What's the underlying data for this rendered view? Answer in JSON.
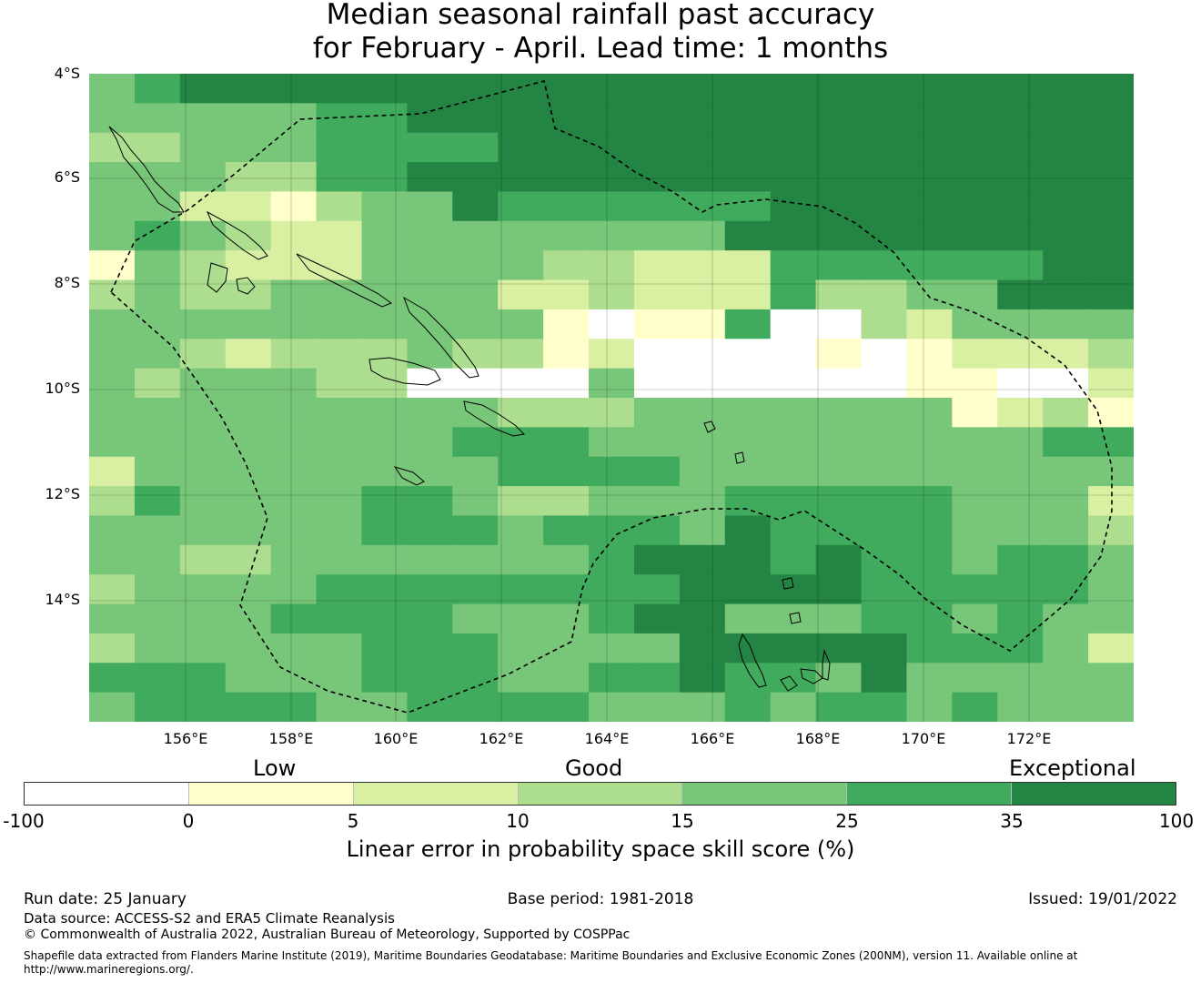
{
  "title": {
    "line1": "Median seasonal rainfall past accuracy",
    "line2": "for February - April. Lead time: 1 months"
  },
  "map": {
    "latitude_labels": [
      "4°S",
      "6°S",
      "8°S",
      "10°S",
      "12°S",
      "14°S"
    ],
    "longitude_labels": [
      "156°E",
      "158°E",
      "160°E",
      "162°E",
      "164°E",
      "166°E",
      "168°E",
      "170°E",
      "172°E"
    ],
    "grid_rows": [
      "45666666666666666666666",
      "44444556666666666666666",
      "33444555566666666666666",
      "44433556666666666666666",
      "44221344655555566666666",
      "45432244444444666666666",
      "14322244443322255555566",
      "34334444422322253344666",
      "44444444441011500324444",
      "44323334331200001012223",
      "43444330000400000011002",
      "44444444433344444441231",
      "44444444555444444444455",
      "24444444455554444444444",
      "35444455433444555554442",
      "44444455545554655554443",
      "44334444444566656554554",
      "34444555555556666555554",
      "44445555444566444554544",
      "34444455544446666655542",
      "55544455544556554644444",
      "45555445555444545545444"
    ]
  },
  "legend": {
    "category_labels": [
      "Low",
      "Good",
      "Exceptional"
    ],
    "ticks": [
      "-100",
      "0",
      "5",
      "10",
      "15",
      "25",
      "35",
      "100"
    ],
    "colors": [
      "#ffffff",
      "#ffffcc",
      "#d9f0a3",
      "#addd8e",
      "#78c679",
      "#41ab5d",
      "#238443"
    ],
    "title": "Linear error in probability space skill score (%)"
  },
  "footer": {
    "run_date": "Run date: 25 January",
    "base_period": "Base period: 1981-2018",
    "issued": "Issued: 19/01/2022",
    "data_source": "Data source: ACCESS-S2 and ERA5 Climate Reanalysis",
    "copyright": "© Commonwealth of Australia 2022, Australian Bureau of Meteorology, Supported by COSPPac",
    "shapefile_line1": "Shapefile data extracted from Flanders Marine Institute (2019), Maritime Boundaries Geodatabase: Maritime Boundaries and Exclusive Economic Zones (200NM), version 11. Available online at",
    "shapefile_line2": "http://www.marineregions.org/."
  }
}
